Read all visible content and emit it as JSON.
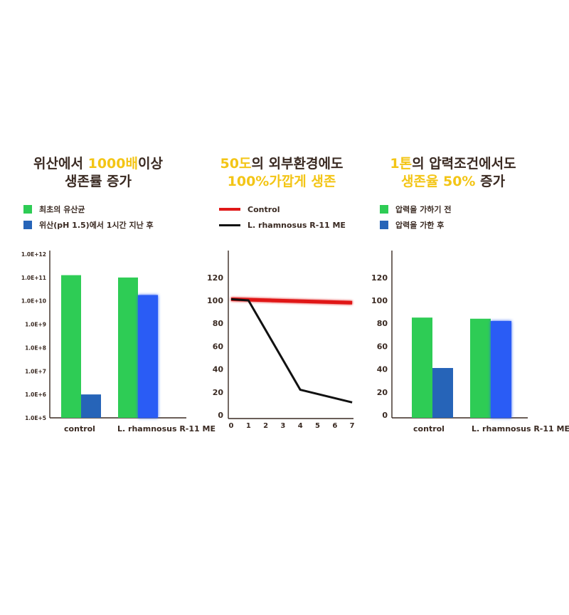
{
  "panels": [
    {
      "title_line1_pre": "위산에서 ",
      "title_line1_hl": "1000배",
      "title_line1_post": "이상",
      "title_line2": "생존률 증가",
      "legend": [
        {
          "label": "최초의 유산균",
          "color": "#2ecc55"
        },
        {
          "label": "위산(pH 1.5)에서 1시간 지난 후",
          "color": "#2664b8"
        }
      ]
    },
    {
      "title_line1_hl": "50도",
      "title_line1_post": "의 외부환경에도",
      "title_line2_hl": "100%가깝게 생존",
      "legend": [
        {
          "label": "Control",
          "color": "#e01818"
        },
        {
          "label": "L. rhamnosus R-11 ME",
          "color": "#111111"
        }
      ]
    },
    {
      "title_line1_hl": "1톤",
      "title_line1_post": "의 압력조건에서도",
      "title_line2_hl": "생존율 50%",
      "title_line2_post": " 증가",
      "legend": [
        {
          "label": "압력을 가하기 전",
          "color": "#2ecc55"
        },
        {
          "label": "압력을 가한 후",
          "color": "#2664b8"
        }
      ]
    }
  ],
  "chart_data": [
    {
      "type": "bar",
      "scale": "log10",
      "categories": [
        "control",
        "L. rhamnosus R-11 ME"
      ],
      "ytick_labels": [
        "1.0E+5",
        "1.0E+6",
        "1.0E+7",
        "1.0E+8",
        "1.0E+9",
        "1.0E+10",
        "1.0E+11",
        "1.0E+12"
      ],
      "ylim_exp": [
        5,
        12
      ],
      "series": [
        {
          "name": "최초의 유산균",
          "color": "#2ecc55",
          "values_exp": [
            11.1,
            11.0
          ]
        },
        {
          "name": "위산(pH 1.5)에서 1시간 지난 후",
          "color": "#2664b8",
          "values_exp": [
            6.0,
            10.25
          ]
        }
      ],
      "highlight_color": "#2a5cf5"
    },
    {
      "type": "line",
      "x": [
        0,
        1,
        2,
        3,
        4,
        5,
        6,
        7
      ],
      "yticks": [
        0,
        20,
        40,
        60,
        80,
        100,
        120
      ],
      "ylim": [
        0,
        140
      ],
      "series": [
        {
          "name": "Control",
          "color": "#e01818",
          "points": [
            [
              0,
              101
            ],
            [
              7,
              98
            ]
          ]
        },
        {
          "name": "L. rhamnosus R-11 ME",
          "color": "#111111",
          "points": [
            [
              0,
              101
            ],
            [
              1,
              100
            ],
            [
              4,
              22
            ],
            [
              7,
              11
            ]
          ]
        }
      ]
    },
    {
      "type": "bar",
      "categories": [
        "control",
        "L. rhamnosus R-11 ME"
      ],
      "yticks": [
        0,
        20,
        40,
        60,
        80,
        100,
        120
      ],
      "ylim": [
        0,
        140
      ],
      "series": [
        {
          "name": "압력을 가하기 전",
          "color": "#2ecc55",
          "values": [
            85,
            84
          ]
        },
        {
          "name": "압력을 가한 후",
          "color": "#2664b8",
          "values": [
            41,
            82
          ]
        }
      ],
      "highlight_color": "#2a5cf5"
    }
  ]
}
